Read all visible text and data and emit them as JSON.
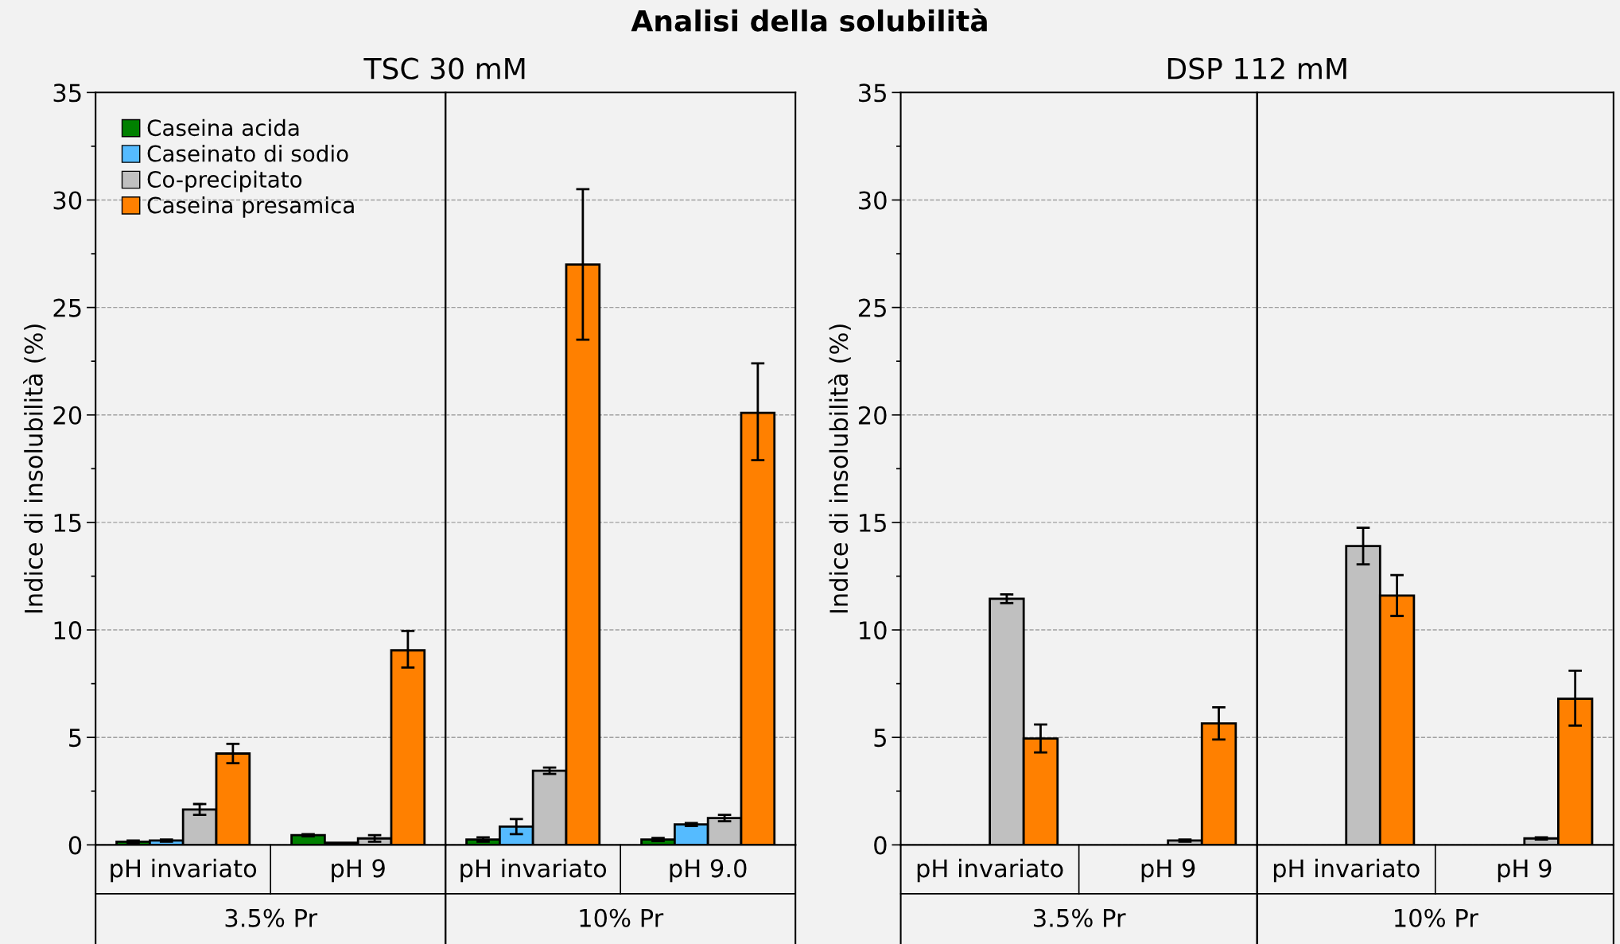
{
  "chart_data": [
    {
      "type": "bar",
      "title": "Analisi della solubilità",
      "subtitle": "TSC 30 mM",
      "ylabel": "Indice di insolubilità (%)",
      "categories": [
        "pH invariato",
        "pH 9",
        "pH invariato",
        "pH 9.0"
      ],
      "annotations": [
        "3.5% Pr",
        "10% Pr"
      ],
      "series": [
        {
          "name": "Caseina acida",
          "color": "#008000",
          "values": [
            0.15,
            0.45,
            0.25,
            0.25
          ],
          "errors": [
            0.05,
            0.05,
            0.1,
            0.07
          ]
        },
        {
          "name": "Caseinato di sodio",
          "color": "#55bbff",
          "values": [
            0.2,
            0.1,
            0.85,
            0.95
          ],
          "errors": [
            0.05,
            null,
            0.35,
            0.07
          ]
        },
        {
          "name": "Co-precipitato",
          "color": "#c0c0c0",
          "values": [
            1.65,
            0.3,
            3.45,
            1.25
          ],
          "errors": [
            0.25,
            0.15,
            0.15,
            0.15
          ]
        },
        {
          "name": "Caseina presamica",
          "color": "#ff8000",
          "values": [
            4.25,
            9.05,
            27.0,
            20.1
          ],
          "errors": [
            0.45,
            [
              8.25,
              9.95
            ],
            3.5,
            [
              17.9,
              22.4
            ]
          ]
        }
      ],
      "ylim": [
        0,
        35
      ],
      "yticks": [
        0,
        5,
        10,
        15,
        20,
        25,
        30,
        35
      ],
      "grid": "y",
      "legend": "top left"
    },
    {
      "type": "bar",
      "subtitle": "DSP 112 mM",
      "ylabel": "Indice di insolubilità (%)",
      "categories": [
        "pH invariato",
        "pH 9",
        "pH invariato",
        "pH 9"
      ],
      "annotations": [
        "3.5% Pr",
        "10% Pr"
      ],
      "series": [
        {
          "values": [
            null,
            null,
            null,
            null
          ]
        },
        {
          "values": [
            null,
            null,
            null,
            null
          ]
        },
        {
          "color": "#c0c0c0",
          "values": [
            11.45,
            0.2,
            13.9,
            0.3
          ],
          "errors": [
            0.2,
            0.05,
            0.85,
            0.05
          ]
        },
        {
          "color": "#ff8000",
          "values": [
            4.95,
            5.65,
            11.6,
            6.8
          ],
          "errors": [
            0.65,
            0.75,
            0.95,
            [
              5.55,
              8.1
            ]
          ]
        }
      ],
      "ylim": [
        0,
        35
      ],
      "yticks": [
        0,
        5,
        10,
        15,
        20,
        25,
        30,
        35
      ],
      "grid": "y"
    }
  ]
}
